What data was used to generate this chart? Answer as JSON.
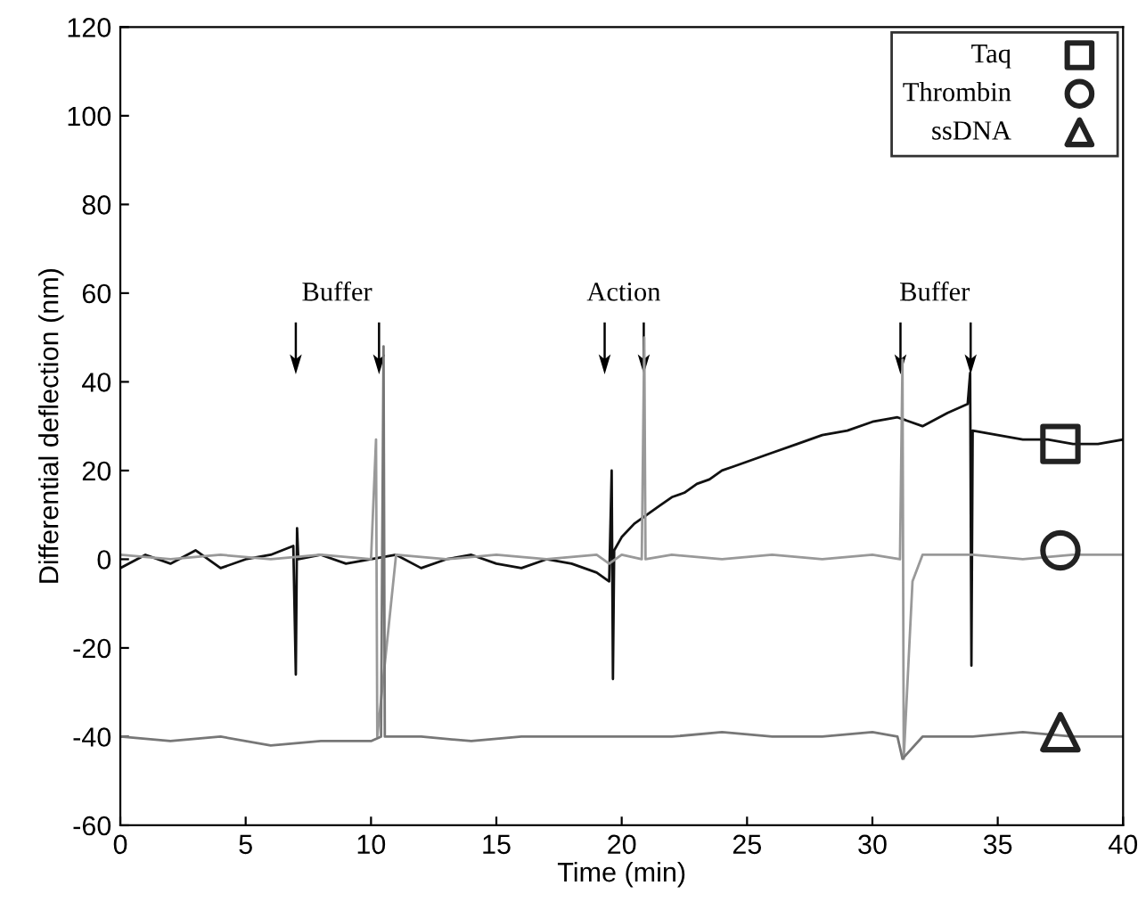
{
  "chart_data": {
    "type": "line",
    "xlabel": "Time (min)",
    "ylabel": "Differential deflection (nm)",
    "xlim": [
      0,
      40
    ],
    "xticks": [
      0,
      5,
      10,
      15,
      20,
      25,
      30,
      35,
      40
    ],
    "ylim": [
      -60,
      120
    ],
    "yticks": [
      -60,
      -40,
      -20,
      0,
      20,
      40,
      60,
      80,
      100,
      120
    ],
    "grid": false,
    "legend": "top right",
    "annotations": [
      "Buffer",
      "Action",
      "Buffer"
    ],
    "series": [
      {
        "color": "#111111",
        "x": [
          0,
          1,
          2,
          3,
          4,
          5,
          6,
          6.9,
          7.0,
          7.05,
          7.1,
          8,
          9,
          10,
          11,
          12,
          13,
          14,
          15,
          16,
          17,
          18,
          19,
          19.5,
          19.6,
          19.65,
          19.7,
          20,
          20.5,
          21,
          21.5,
          22,
          22.5,
          23,
          23.5,
          24,
          24.5,
          25,
          26,
          27,
          28,
          29,
          30,
          31,
          32,
          33,
          33.8,
          33.9,
          33.95,
          34,
          35,
          36,
          37,
          38,
          39,
          40
        ],
        "values": [
          -2,
          1,
          -1,
          2,
          -2,
          0,
          1,
          3,
          -26,
          7,
          0,
          1,
          -1,
          0,
          1,
          -2,
          0,
          1,
          -1,
          -2,
          0,
          -1,
          -3,
          -5,
          20,
          -27,
          2,
          5,
          8,
          10,
          12,
          14,
          15,
          17,
          18,
          20,
          21,
          22,
          24,
          26,
          28,
          29,
          31,
          32,
          30,
          33,
          35,
          42,
          -24,
          29,
          28,
          27,
          27,
          26,
          26,
          27
        ]
      },
      {
        "color": "#999999",
        "x": [
          0,
          2,
          4,
          6,
          8,
          10,
          10.2,
          10.25,
          11,
          13,
          15,
          17,
          19,
          19.5,
          20,
          20.8,
          20.9,
          20.95,
          22,
          24,
          26,
          28,
          30,
          31.1,
          31.2,
          31.25,
          31.6,
          32,
          34,
          36,
          38,
          40
        ],
        "values": [
          1,
          0,
          1,
          0,
          1,
          0,
          27,
          -40,
          1,
          0,
          1,
          0,
          1,
          -1,
          1,
          0,
          50,
          0,
          1,
          0,
          1,
          0,
          1,
          0,
          45,
          -45,
          -5,
          1,
          1,
          0,
          1,
          1
        ]
      },
      {
        "color": "#777777",
        "x": [
          0,
          2,
          4,
          6,
          8,
          10,
          10.4,
          10.5,
          10.55,
          12,
          14,
          16,
          18,
          20,
          22,
          24,
          26,
          28,
          30,
          31,
          31.2,
          32,
          34,
          36,
          38,
          40
        ],
        "values": [
          -40,
          -41,
          -40,
          -42,
          -41,
          -41,
          -40,
          48,
          -40,
          -40,
          -41,
          -40,
          -40,
          -40,
          -40,
          -39,
          -40,
          -40,
          -39,
          -40,
          -45,
          -40,
          -40,
          -39,
          -40,
          -40
        ]
      },
      {
        "type": "scatter",
        "name": "Taq",
        "color": "#222222",
        "marker": "square",
        "x": [
          37.5
        ],
        "values": [
          26
        ]
      },
      {
        "type": "scatter",
        "name": "Thrombin",
        "color": "#222222",
        "marker": "circle",
        "x": [
          37.5
        ],
        "values": [
          2
        ]
      },
      {
        "type": "scatter",
        "name": "ssDNA",
        "color": "#222222",
        "marker": "triangle",
        "x": [
          37.5
        ],
        "values": [
          -39
        ]
      }
    ]
  }
}
